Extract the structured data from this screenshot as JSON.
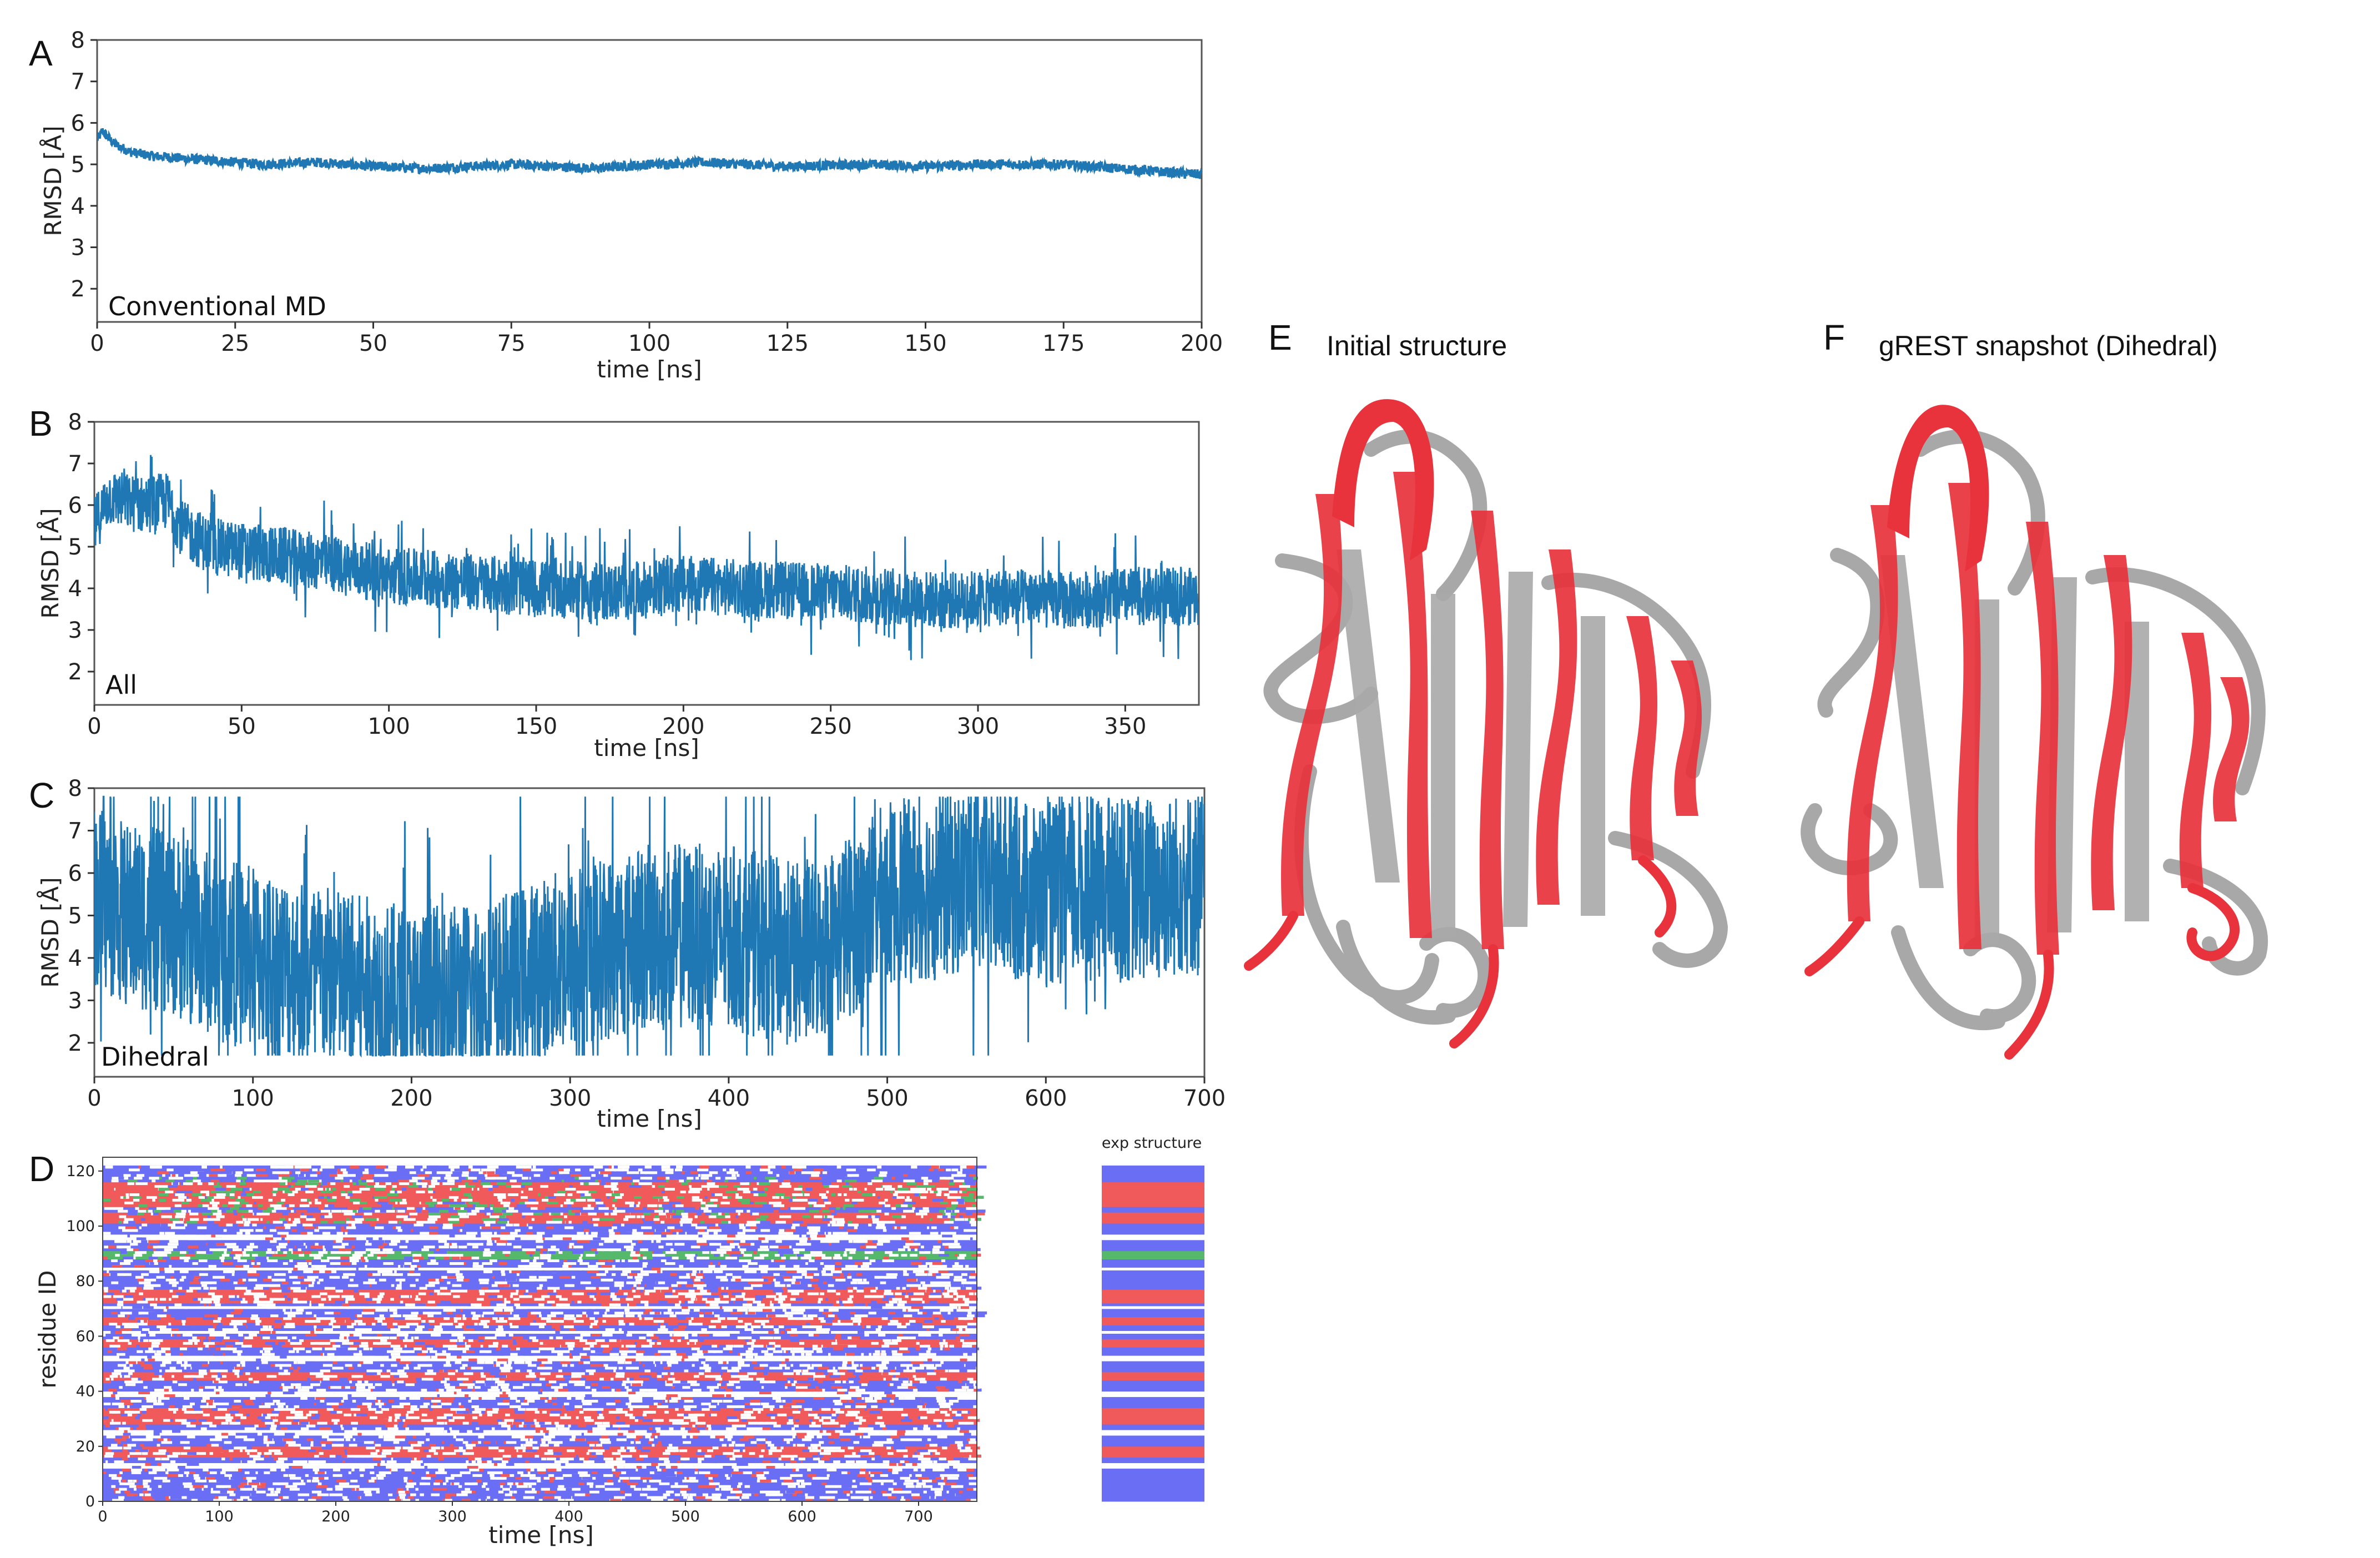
{
  "colors": {
    "line": "#1f77b4",
    "helix": "#6a6ef5",
    "strand": "#f05a5a",
    "turn": "#55b86a",
    "structure_red": "#e8323c",
    "structure_gray": "#a8a8a8"
  },
  "chart_data": [
    {
      "panel": "A",
      "type": "line",
      "inset_label": "Conventional MD",
      "xlabel": "time [ns]",
      "ylabel": "RMSD [Å]",
      "xlim": [
        0,
        200
      ],
      "ylim": [
        1.2,
        8
      ],
      "xticks": [
        "0",
        "25",
        "50",
        "75",
        "100",
        "125",
        "150",
        "175",
        "200"
      ],
      "yticks": [
        "2",
        "3",
        "4",
        "5",
        "6",
        "7",
        "8"
      ],
      "series": [
        {
          "x": [
            0,
            1,
            3,
            6,
            10,
            20,
            30,
            40,
            50,
            60,
            75,
            90,
            100,
            110,
            125,
            140,
            150,
            160,
            175,
            185,
            195,
            200
          ],
          "y": [
            5.6,
            5.8,
            5.5,
            5.3,
            5.2,
            5.1,
            5.0,
            5.05,
            4.95,
            4.9,
            5.0,
            4.9,
            5.0,
            5.05,
            4.95,
            5.0,
            4.95,
            5.0,
            5.0,
            4.9,
            4.8,
            4.75
          ],
          "noise": 0.12
        }
      ]
    },
    {
      "panel": "B",
      "type": "line",
      "inset_label": "All",
      "xlabel": "time [ns]",
      "ylabel": "RMSD [Å]",
      "xlim": [
        0,
        375
      ],
      "ylim": [
        1.2,
        8
      ],
      "xticks": [
        "0",
        "50",
        "100",
        "150",
        "200",
        "250",
        "300",
        "350"
      ],
      "yticks": [
        "2",
        "3",
        "4",
        "5",
        "6",
        "7",
        "8"
      ],
      "series": [
        {
          "x": [
            0,
            5,
            15,
            25,
            30,
            40,
            60,
            80,
            100,
            120,
            150,
            180,
            200,
            220,
            250,
            270,
            290,
            310,
            330,
            350,
            375
          ],
          "y": [
            5.5,
            6.2,
            6.0,
            6.1,
            5.4,
            5.0,
            4.8,
            4.6,
            4.3,
            4.2,
            4.0,
            3.9,
            4.1,
            4.0,
            3.9,
            3.8,
            3.7,
            3.8,
            3.7,
            3.8,
            3.8
          ],
          "noise": 0.7
        }
      ]
    },
    {
      "panel": "C",
      "type": "line",
      "inset_label": "Dihedral",
      "xlabel": "time [ns]",
      "ylabel": "RMSD [Å]",
      "xlim": [
        0,
        700
      ],
      "ylim": [
        1.2,
        8
      ],
      "xticks": [
        "0",
        "100",
        "200",
        "300",
        "400",
        "500",
        "600",
        "700"
      ],
      "yticks": [
        "2",
        "3",
        "4",
        "5",
        "6",
        "7",
        "8"
      ],
      "series": [
        {
          "x": [
            0,
            20,
            50,
            80,
            100,
            150,
            200,
            250,
            300,
            350,
            400,
            450,
            500,
            550,
            600,
            650,
            700
          ],
          "y": [
            5.5,
            5.0,
            4.8,
            4.2,
            4.0,
            3.5,
            3.0,
            3.2,
            4.0,
            4.5,
            4.5,
            4.0,
            5.5,
            5.8,
            5.5,
            5.6,
            5.8
          ],
          "noise": 2.2
        }
      ]
    },
    {
      "panel": "D",
      "type": "heatmap",
      "xlabel": "time [ns]",
      "ylabel": "residue ID",
      "xlim": [
        0,
        750
      ],
      "ylim": [
        0,
        125
      ],
      "xticks": [
        "0",
        "100",
        "200",
        "300",
        "400",
        "500",
        "600",
        "700"
      ],
      "yticks": [
        "0",
        "20",
        "40",
        "60",
        "80",
        "100",
        "120"
      ],
      "side_label": "exp structure"
    }
  ],
  "structures": [
    {
      "panel": "E",
      "title": "Initial structure"
    },
    {
      "panel": "F",
      "title": "gREST snapshot (Dihedral)"
    }
  ]
}
